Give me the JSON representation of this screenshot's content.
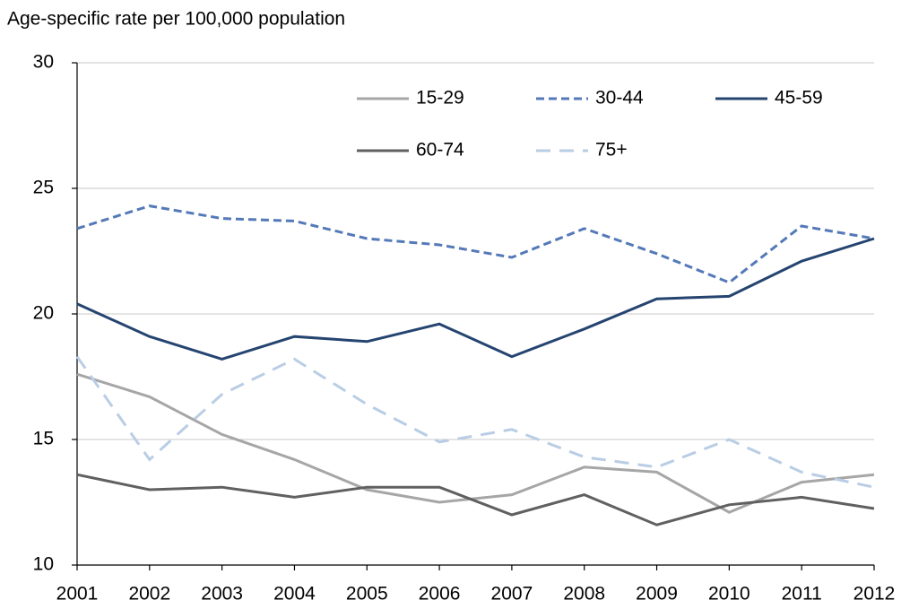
{
  "chart_data": {
    "type": "line",
    "title": "Age-specific rate per 100,000  population",
    "x": [
      2001,
      2002,
      2003,
      2004,
      2005,
      2006,
      2007,
      2008,
      2009,
      2010,
      2011,
      2012
    ],
    "xlim": [
      2001,
      2012
    ],
    "xticks": [
      2001,
      2002,
      2003,
      2004,
      2005,
      2006,
      2007,
      2008,
      2009,
      2010,
      2011,
      2012
    ],
    "ylim": [
      10,
      30
    ],
    "yticks": [
      10,
      15,
      20,
      25,
      30
    ],
    "grid": true,
    "legend": "top-right",
    "series": [
      {
        "name": "15-29",
        "color": "#a6a6a6",
        "dash": "solid",
        "values": [
          17.6,
          16.7,
          15.2,
          14.2,
          13.0,
          12.5,
          12.8,
          13.9,
          13.7,
          12.1,
          13.3,
          13.6
        ]
      },
      {
        "name": "30-44",
        "color": "#5479b8",
        "dash": "dashed",
        "values": [
          23.4,
          24.3,
          23.8,
          23.7,
          23.0,
          22.75,
          22.25,
          23.4,
          22.4,
          21.25,
          23.5,
          23.0
        ]
      },
      {
        "name": "45-59",
        "color": "#254470",
        "dash": "solid",
        "values": [
          20.4,
          19.1,
          18.2,
          19.1,
          18.9,
          19.6,
          18.3,
          19.4,
          20.6,
          20.7,
          22.1,
          23.0
        ]
      },
      {
        "name": "60-74",
        "color": "#606060",
        "dash": "solid",
        "values": [
          13.6,
          13.0,
          13.1,
          12.7,
          13.1,
          13.1,
          12.0,
          12.8,
          11.6,
          12.4,
          12.7,
          12.25
        ]
      },
      {
        "name": "75+",
        "color": "#b9cde5",
        "dash": "long-dash",
        "values": [
          18.3,
          14.2,
          16.8,
          18.2,
          16.4,
          14.9,
          15.4,
          14.3,
          13.9,
          15.0,
          13.7,
          13.1
        ]
      }
    ]
  }
}
